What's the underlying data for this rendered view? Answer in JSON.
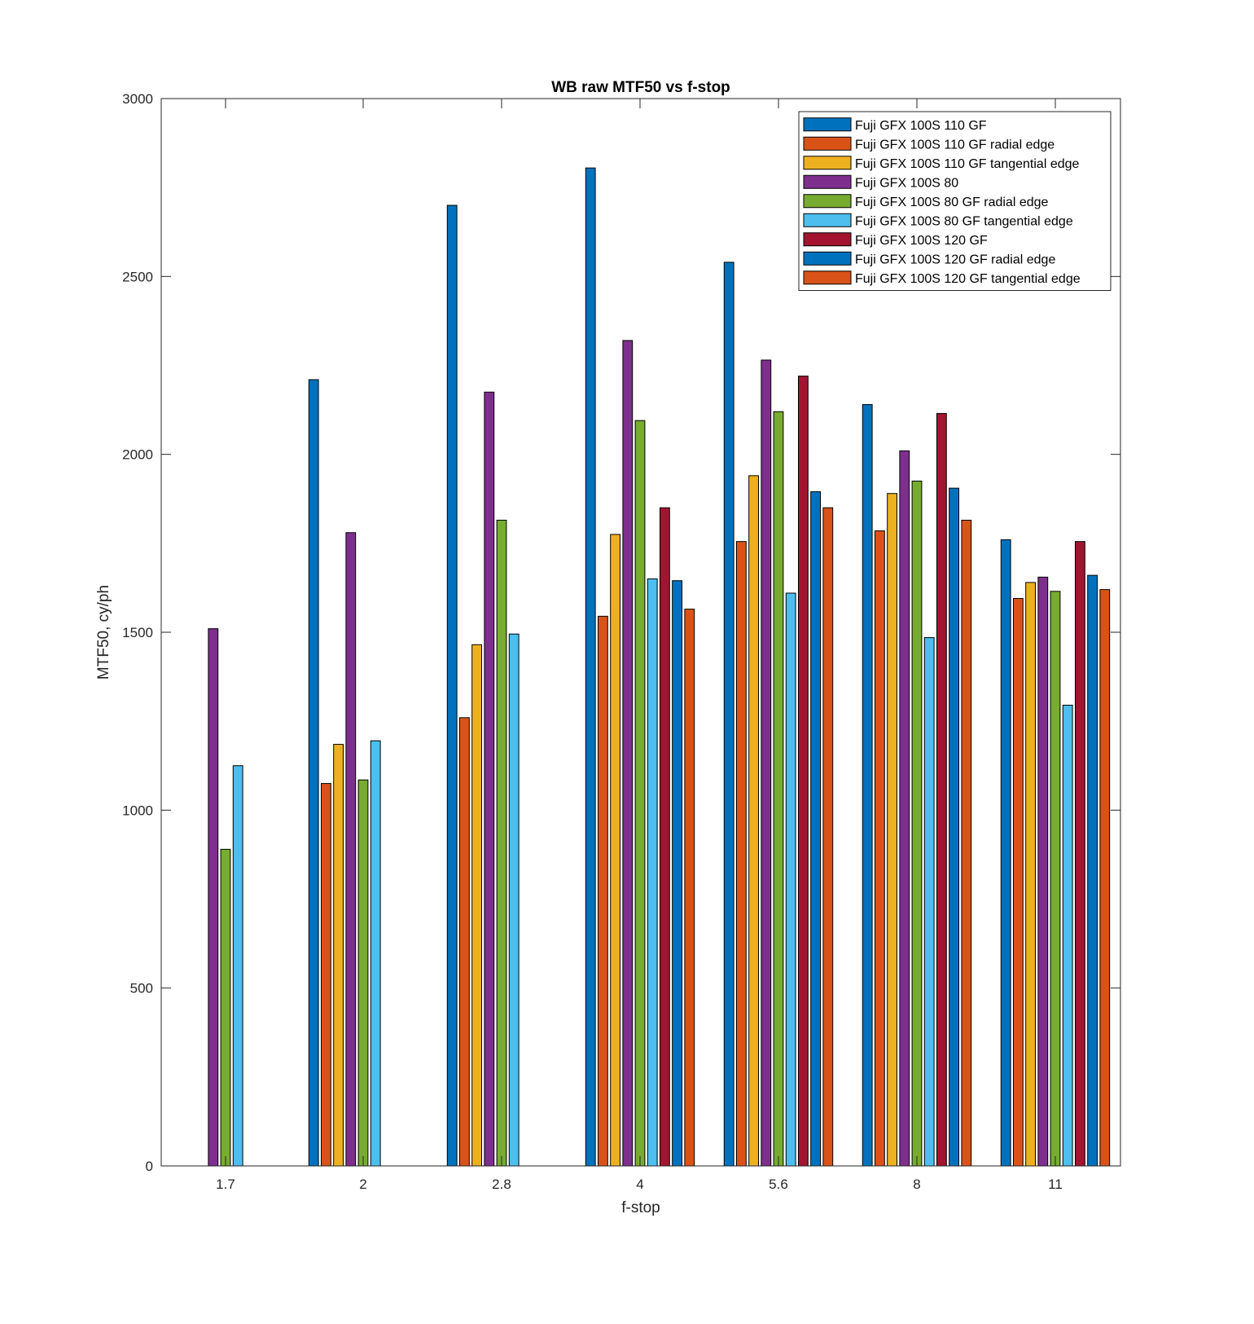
{
  "chart_data": {
    "type": "bar",
    "title": "WB raw MTF50 vs f-stop",
    "xlabel": "f-stop",
    "ylabel": "MTF50, cy/ph",
    "ylim": [
      0,
      3000
    ],
    "yticks": [
      0,
      500,
      1000,
      1500,
      2000,
      2500,
      3000
    ],
    "grid": false,
    "legend_position": "top-right",
    "categories": [
      "1.7",
      "2",
      "2.8",
      "4",
      "5.6",
      "8",
      "11"
    ],
    "series": [
      {
        "name": "Fuji GFX 100S 110 GF",
        "color": "#0072BD",
        "values": [
          null,
          2210,
          2700,
          2805,
          2540,
          2140,
          1760
        ]
      },
      {
        "name": "Fuji GFX 100S 110 GF radial edge",
        "color": "#D95319",
        "values": [
          null,
          1075,
          1260,
          1545,
          1755,
          1785,
          1595
        ]
      },
      {
        "name": "Fuji GFX 100S 110 GF tangential edge",
        "color": "#EDB120",
        "values": [
          null,
          1185,
          1465,
          1775,
          1940,
          1890,
          1640
        ]
      },
      {
        "name": "Fuji GFX 100S 80",
        "color": "#7E2F8E",
        "values": [
          1510,
          1780,
          2175,
          2320,
          2265,
          2010,
          1655
        ]
      },
      {
        "name": "Fuji GFX 100S 80 GF radial edge",
        "color": "#77AC30",
        "values": [
          890,
          1085,
          1815,
          2095,
          2120,
          1925,
          1615
        ]
      },
      {
        "name": "Fuji GFX 100S 80 GF tangential edge",
        "color": "#4DBEEE",
        "values": [
          1125,
          1195,
          1495,
          1650,
          1610,
          1485,
          1295
        ]
      },
      {
        "name": "Fuji GFX 100S 120 GF",
        "color": "#A2142F",
        "values": [
          null,
          null,
          null,
          1850,
          2220,
          2115,
          1755
        ]
      },
      {
        "name": "Fuji GFX 100S 120 GF radial edge",
        "color": "#0072BD",
        "values": [
          null,
          null,
          null,
          1645,
          1895,
          1905,
          1660
        ]
      },
      {
        "name": "Fuji GFX 100S 120 GF tangential edge",
        "color": "#D95319",
        "values": [
          null,
          null,
          null,
          1565,
          1850,
          1815,
          1620
        ]
      }
    ]
  }
}
